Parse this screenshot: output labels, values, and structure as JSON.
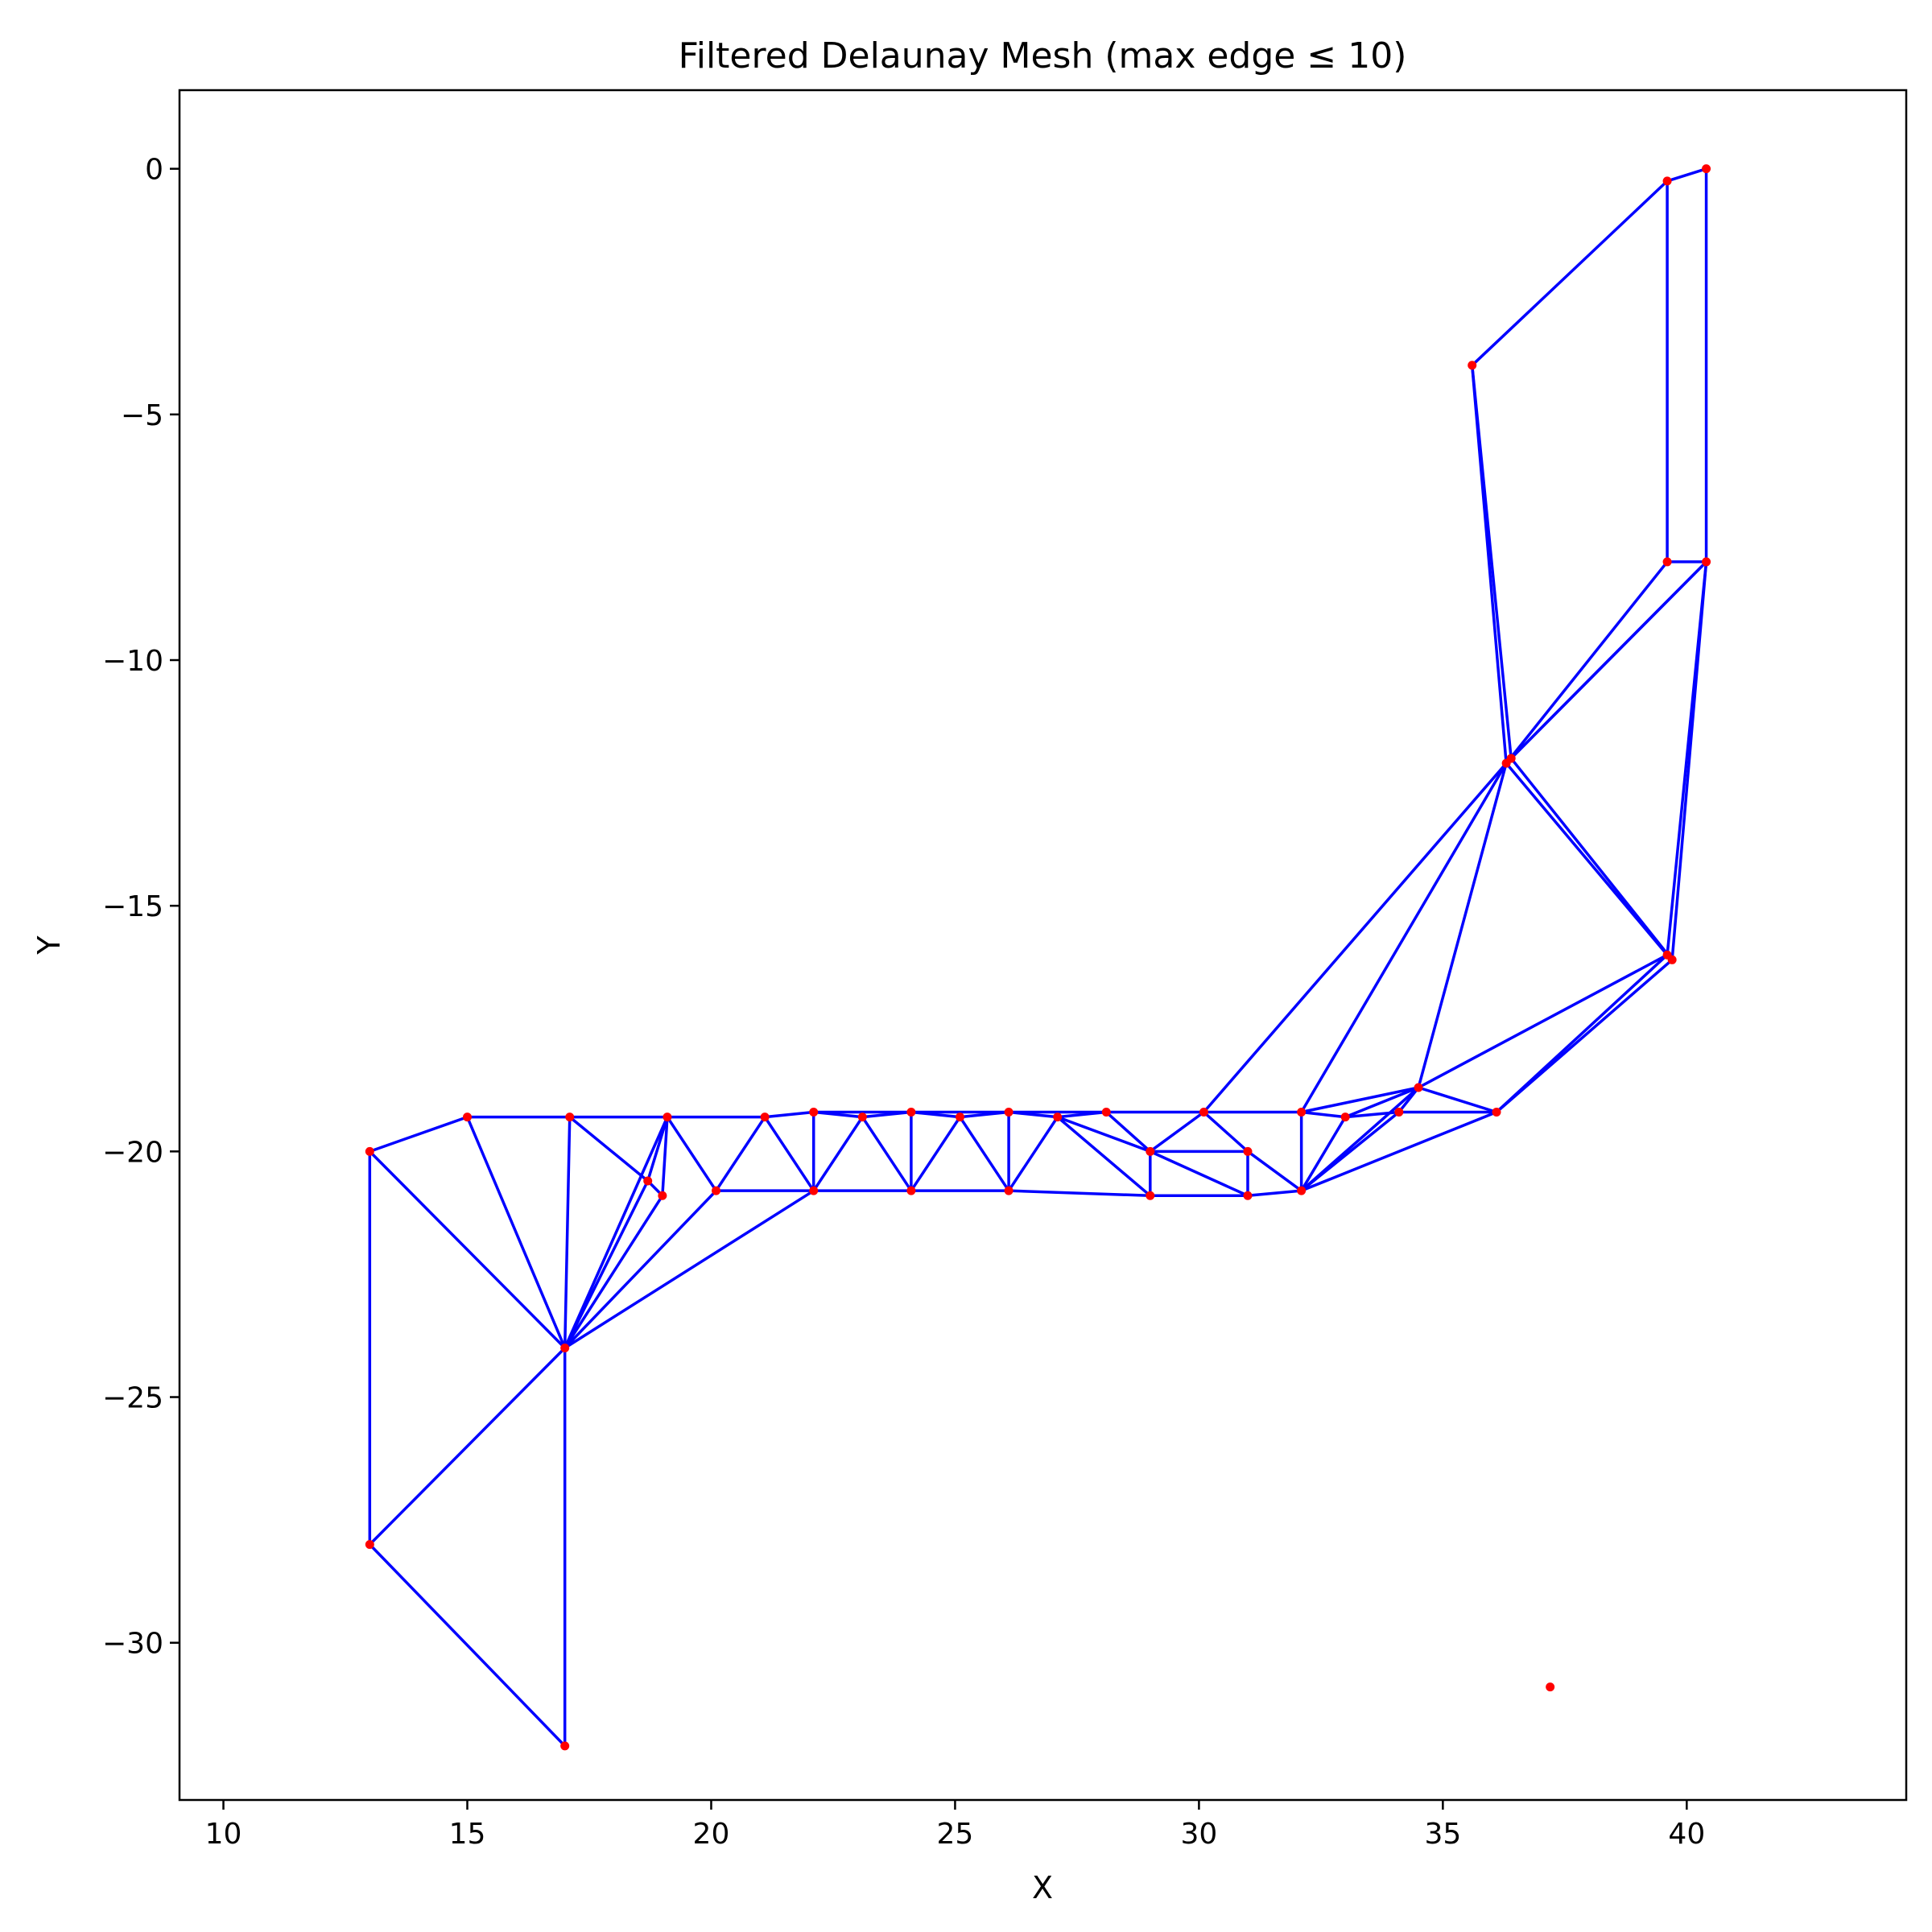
{
  "chart_data": {
    "type": "scatter",
    "title": "Filtered Delaunay Mesh (max edge ≤ 10)",
    "xlabel": "X",
    "ylabel": "Y",
    "xlim": [
      9.1,
      44.5
    ],
    "ylim": [
      -33.2,
      1.6
    ],
    "x_ticks": [
      10,
      15,
      20,
      25,
      30,
      35,
      40
    ],
    "y_ticks": [
      0,
      -5,
      -10,
      -15,
      -20,
      -25,
      -30
    ],
    "x_tick_labels": [
      "10",
      "15",
      "20",
      "25",
      "30",
      "35",
      "40"
    ],
    "y_tick_labels": [
      "0",
      "−5",
      "−10",
      "−15",
      "−20",
      "−25",
      "−30"
    ],
    "grid": false,
    "colors": {
      "edges": "#0000ff",
      "points": "#ff0000"
    },
    "points": [
      [
        13.0,
        -20.0
      ],
      [
        13.0,
        -28.0
      ],
      [
        15.0,
        -19.3
      ],
      [
        17.0,
        -24.0
      ],
      [
        17.0,
        -32.1
      ],
      [
        17.1,
        -19.3
      ],
      [
        18.7,
        -20.6
      ],
      [
        19.0,
        -20.9
      ],
      [
        19.1,
        -19.3
      ],
      [
        20.1,
        -20.8
      ],
      [
        21.1,
        -19.3
      ],
      [
        22.1,
        -19.2
      ],
      [
        22.1,
        -20.8
      ],
      [
        23.1,
        -19.3
      ],
      [
        24.1,
        -19.2
      ],
      [
        24.1,
        -20.8
      ],
      [
        25.1,
        -19.3
      ],
      [
        26.1,
        -19.2
      ],
      [
        26.1,
        -20.8
      ],
      [
        27.1,
        -19.3
      ],
      [
        28.1,
        -19.2
      ],
      [
        29.0,
        -20.0
      ],
      [
        29.0,
        -20.9
      ],
      [
        30.1,
        -19.2
      ],
      [
        31.0,
        -20.0
      ],
      [
        31.0,
        -20.9
      ],
      [
        32.1,
        -19.2
      ],
      [
        32.1,
        -20.8
      ],
      [
        33.0,
        -19.3
      ],
      [
        34.1,
        -19.2
      ],
      [
        34.5,
        -18.7
      ],
      [
        36.1,
        -19.2
      ],
      [
        35.6,
        -4.0
      ],
      [
        36.3,
        -12.1
      ],
      [
        36.4,
        -12.0
      ],
      [
        39.6,
        -0.25
      ],
      [
        40.4,
        0.0
      ],
      [
        39.6,
        -8.0
      ],
      [
        40.4,
        -8.0
      ],
      [
        39.6,
        -16.0
      ],
      [
        39.7,
        -16.1
      ],
      [
        37.2,
        -30.9
      ]
    ],
    "edges": [
      [
        0,
        1
      ],
      [
        0,
        2
      ],
      [
        0,
        3
      ],
      [
        1,
        3
      ],
      [
        1,
        4
      ],
      [
        3,
        4
      ],
      [
        2,
        3
      ],
      [
        2,
        5
      ],
      [
        3,
        5
      ],
      [
        5,
        6
      ],
      [
        3,
        6
      ],
      [
        5,
        8
      ],
      [
        6,
        8
      ],
      [
        6,
        7
      ],
      [
        7,
        8
      ],
      [
        3,
        7
      ],
      [
        3,
        8
      ],
      [
        3,
        9
      ],
      [
        8,
        9
      ],
      [
        8,
        10
      ],
      [
        9,
        10
      ],
      [
        3,
        12
      ],
      [
        9,
        12
      ],
      [
        10,
        11
      ],
      [
        10,
        12
      ],
      [
        11,
        12
      ],
      [
        11,
        13
      ],
      [
        12,
        13
      ],
      [
        13,
        14
      ],
      [
        12,
        15
      ],
      [
        13,
        15
      ],
      [
        14,
        15
      ],
      [
        14,
        16
      ],
      [
        15,
        16
      ],
      [
        15,
        18
      ],
      [
        16,
        17
      ],
      [
        16,
        18
      ],
      [
        17,
        18
      ],
      [
        17,
        19
      ],
      [
        18,
        19
      ],
      [
        18,
        22
      ],
      [
        19,
        20
      ],
      [
        19,
        21
      ],
      [
        19,
        22
      ],
      [
        20,
        21
      ],
      [
        21,
        22
      ],
      [
        11,
        23
      ],
      [
        21,
        23
      ],
      [
        21,
        24
      ],
      [
        21,
        25
      ],
      [
        22,
        25
      ],
      [
        23,
        24
      ],
      [
        24,
        25
      ],
      [
        24,
        27
      ],
      [
        25,
        27
      ],
      [
        23,
        26
      ],
      [
        26,
        27
      ],
      [
        26,
        28
      ],
      [
        27,
        28
      ],
      [
        28,
        29
      ],
      [
        27,
        29
      ],
      [
        29,
        30
      ],
      [
        28,
        30
      ],
      [
        27,
        30
      ],
      [
        26,
        30
      ],
      [
        30,
        31
      ],
      [
        27,
        31
      ],
      [
        29,
        31
      ],
      [
        30,
        39
      ],
      [
        31,
        39
      ],
      [
        31,
        40
      ],
      [
        26,
        33
      ],
      [
        23,
        33
      ],
      [
        30,
        33
      ],
      [
        33,
        34
      ],
      [
        32,
        33
      ],
      [
        32,
        34
      ],
      [
        32,
        35
      ],
      [
        35,
        36
      ],
      [
        35,
        37
      ],
      [
        36,
        38
      ],
      [
        37,
        38
      ],
      [
        33,
        37
      ],
      [
        33,
        38
      ],
      [
        34,
        38
      ],
      [
        33,
        39
      ],
      [
        34,
        40
      ],
      [
        38,
        39
      ],
      [
        38,
        40
      ],
      [
        39,
        40
      ]
    ]
  }
}
